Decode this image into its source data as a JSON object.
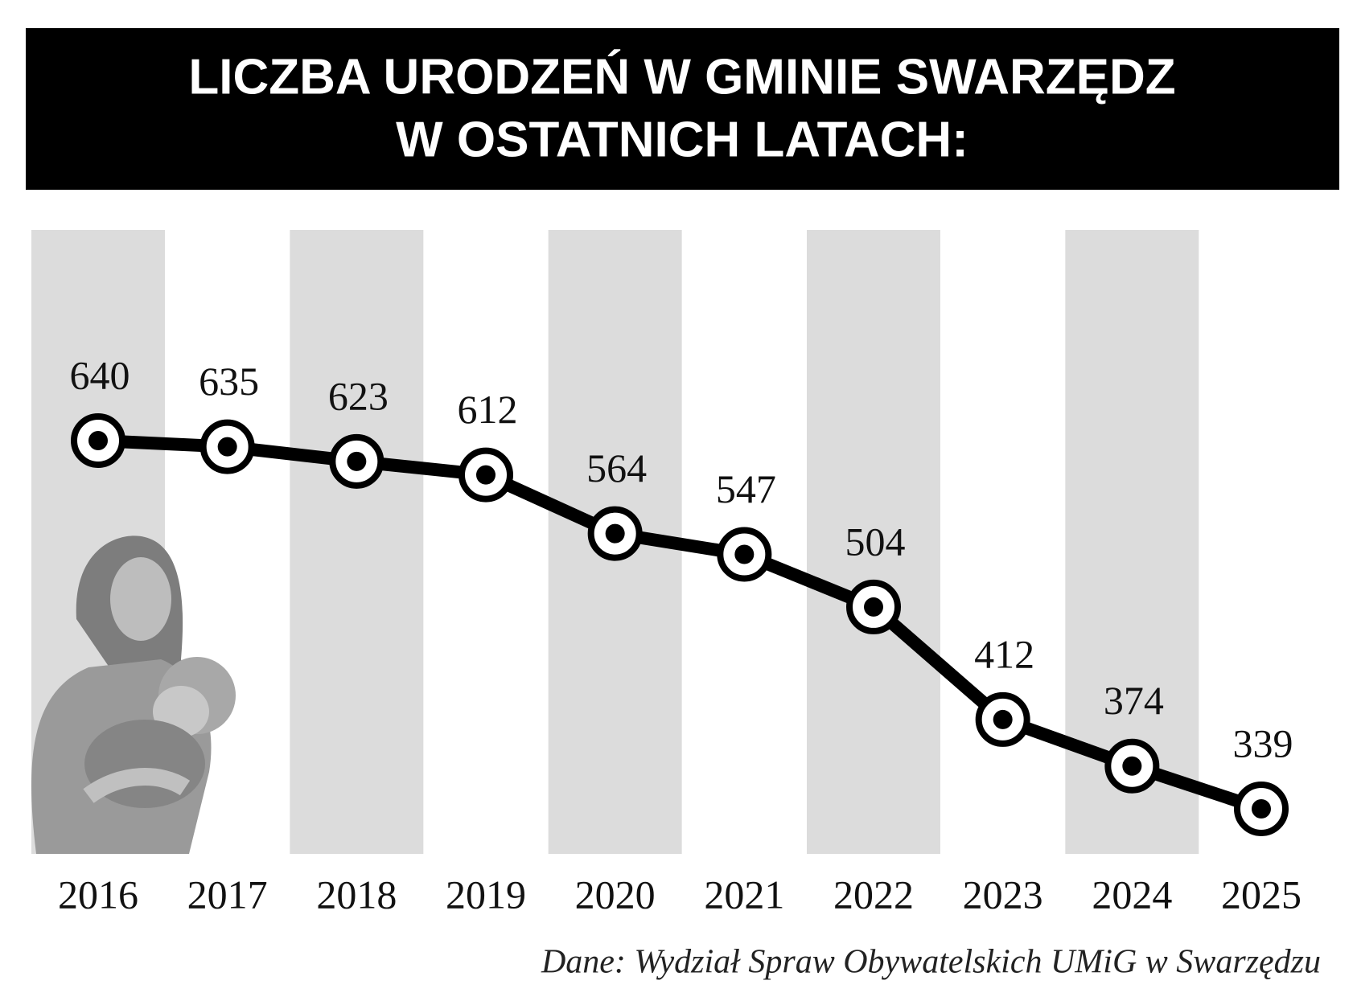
{
  "chart_data": {
    "type": "line",
    "title": [
      "LICZBA URODZEŃ W GMINIE SWARZĘDZ",
      "W OSTATNICH LATACH:"
    ],
    "categories": [
      "2016",
      "2017",
      "2018",
      "2019",
      "2020",
      "2021",
      "2022",
      "2023",
      "2024",
      "2025"
    ],
    "values": [
      640,
      635,
      623,
      612,
      564,
      547,
      504,
      412,
      374,
      339
    ],
    "color": "#000000",
    "stripe_color": "#dcdcdc",
    "source": "Dane: Wydział Spraw Obywatelskich UMiG w Swarzędzu"
  }
}
